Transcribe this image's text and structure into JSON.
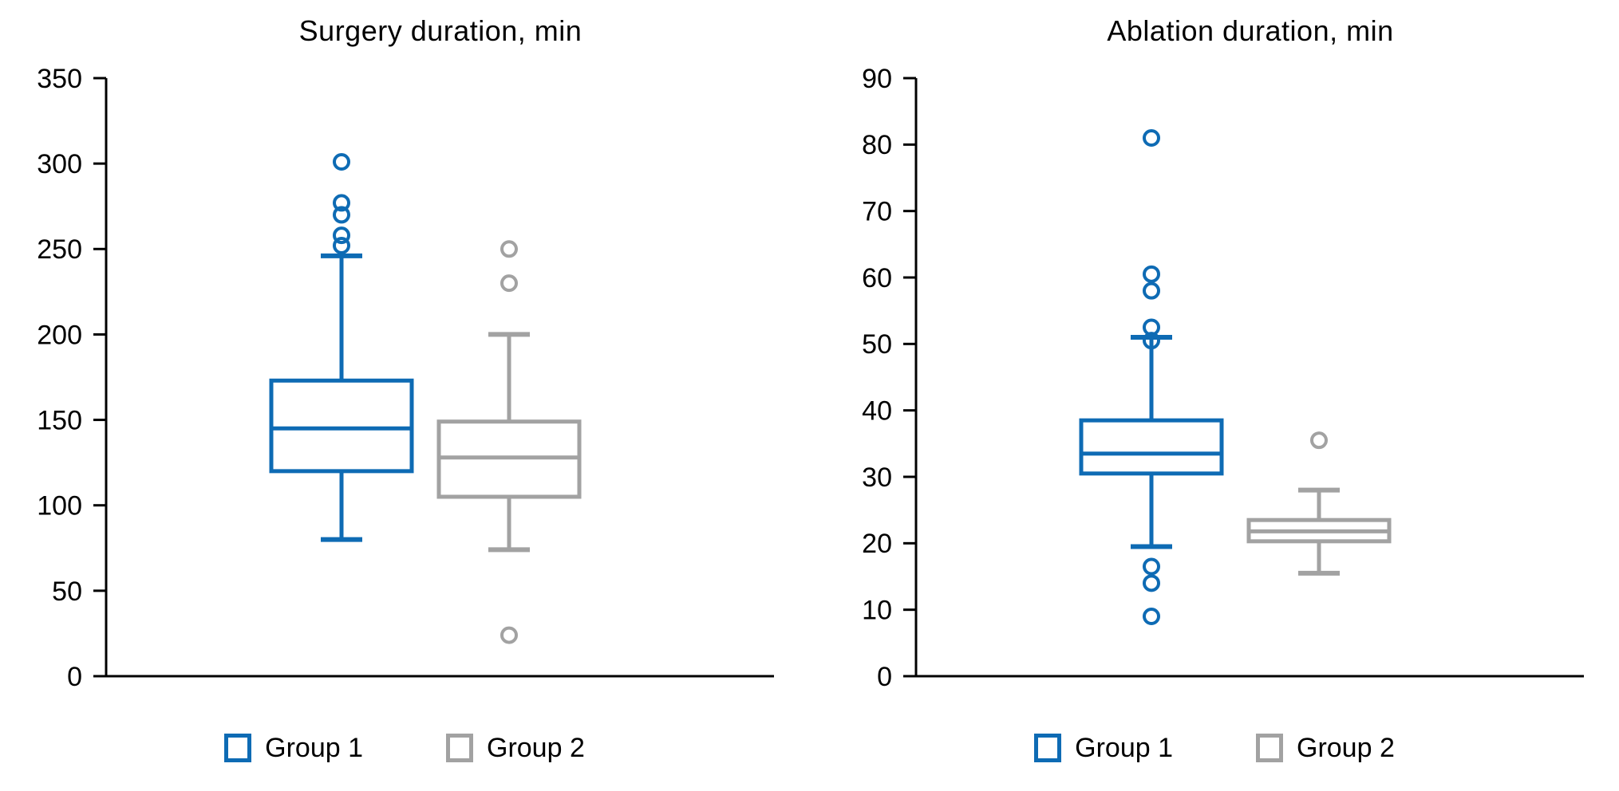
{
  "colors": {
    "group1": "#0e6bb4",
    "group2": "#a2a2a2",
    "axis": "#000000",
    "text": "#000000",
    "background": "#ffffff"
  },
  "chart_data": [
    {
      "type": "box",
      "title": "Surgery duration, min",
      "ylabel": "",
      "xlabel": "",
      "ylim": [
        0,
        350
      ],
      "yticks": [
        0,
        50,
        100,
        150,
        200,
        250,
        300,
        350
      ],
      "grid": false,
      "legend_position": "bottom",
      "series": [
        {
          "name": "Group 1",
          "color": "#0e6bb4",
          "q1": 120,
          "median": 145,
          "q3": 173,
          "whisker_low": 80,
          "whisker_high": 246,
          "outliers": [
            301,
            277,
            270,
            258,
            252
          ]
        },
        {
          "name": "Group 2",
          "color": "#a2a2a2",
          "q1": 105,
          "median": 128,
          "q3": 149,
          "whisker_low": 74,
          "whisker_high": 200,
          "outliers": [
            250,
            230,
            24
          ]
        }
      ]
    },
    {
      "type": "box",
      "title": "Ablation duration, min",
      "ylabel": "",
      "xlabel": "",
      "ylim": [
        0,
        90
      ],
      "yticks": [
        0,
        10,
        20,
        30,
        40,
        50,
        60,
        70,
        80,
        90
      ],
      "grid": false,
      "legend_position": "bottom",
      "series": [
        {
          "name": "Group 1",
          "color": "#0e6bb4",
          "q1": 30.5,
          "median": 33.5,
          "q3": 38.5,
          "whisker_low": 19.5,
          "whisker_high": 51,
          "outliers": [
            81,
            60.5,
            58,
            52.5,
            50.5,
            16.5,
            14,
            9
          ]
        },
        {
          "name": "Group 2",
          "color": "#a2a2a2",
          "q1": 20.3,
          "median": 21.8,
          "q3": 23.5,
          "whisker_low": 15.5,
          "whisker_high": 28,
          "outliers": [
            35.5
          ]
        }
      ]
    }
  ]
}
